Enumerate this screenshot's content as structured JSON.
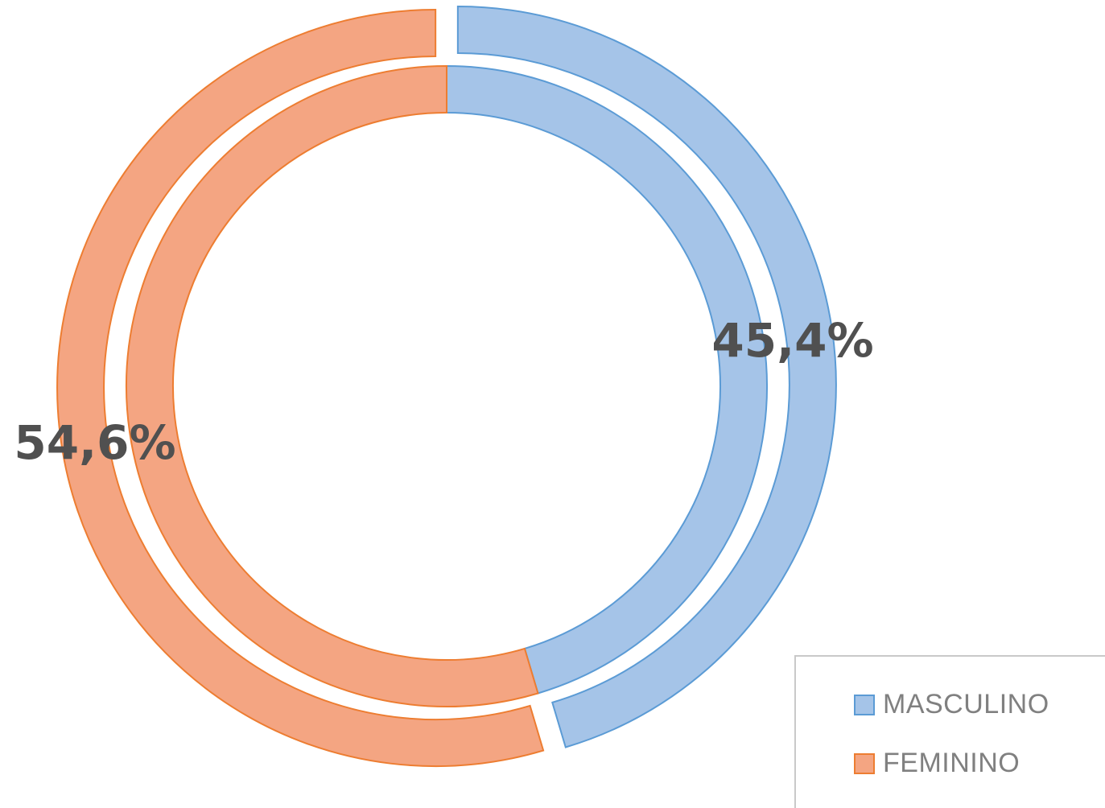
{
  "chart_data": {
    "type": "pie",
    "variant": "double-ring-doughnut",
    "categories": [
      "MASCULINO",
      "FEMININO"
    ],
    "series": [
      {
        "values": [
          45.4,
          54.6
        ]
      },
      {
        "values": [
          45.4,
          54.6
        ]
      }
    ],
    "data_labels": [
      {
        "category": "MASCULINO",
        "text": "45,4%"
      },
      {
        "category": "FEMININO",
        "text": "54,6%"
      }
    ],
    "colors": {
      "MASCULINO": {
        "fill": "#a5c4e8",
        "stroke": "#5b9bd5"
      },
      "FEMININO": {
        "fill": "#f4a582",
        "stroke": "#ed7d31"
      }
    },
    "legend": {
      "position": "bottom-right",
      "entries": [
        "MASCULINO",
        "FEMININO"
      ]
    }
  }
}
